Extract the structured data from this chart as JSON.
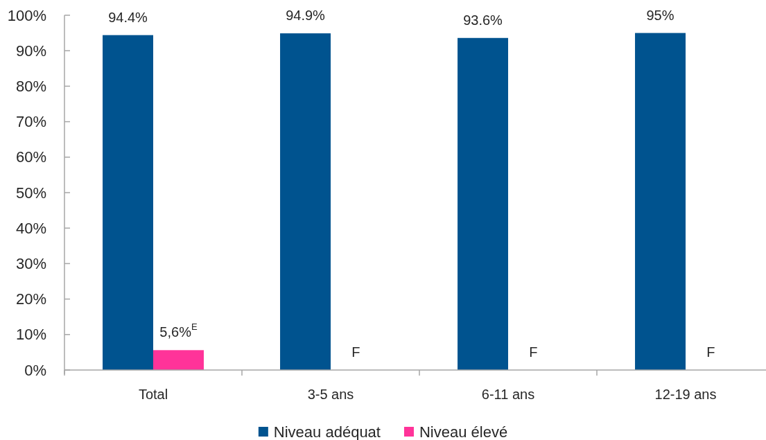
{
  "chart_data": {
    "type": "bar",
    "categories": [
      "Total",
      "3-5 ans",
      "6-11 ans",
      "12-19 ans"
    ],
    "series": [
      {
        "name": "Niveau adéquat",
        "color": "#00538f",
        "values": [
          94.4,
          94.9,
          93.6,
          95
        ],
        "value_labels": [
          "94.4%",
          "94.9%",
          "93.6%",
          "95%"
        ]
      },
      {
        "name": "Niveau élevé",
        "color": "#ff3399",
        "values": [
          5.6,
          null,
          null,
          null
        ],
        "value_labels": [
          "5,6%$^{E}$",
          "F",
          "F",
          "F"
        ]
      }
    ],
    "ylim": [
      0,
      100
    ],
    "yticks": [
      {
        "value": 0,
        "label": "0%"
      },
      {
        "value": 10,
        "label": "10%"
      },
      {
        "value": 20,
        "label": "20%"
      },
      {
        "value": 30,
        "label": "30%"
      },
      {
        "value": 40,
        "label": "40%"
      },
      {
        "value": 50,
        "label": "50%"
      },
      {
        "value": 60,
        "label": "60%"
      },
      {
        "value": 70,
        "label": "70%"
      },
      {
        "value": 80,
        "label": "80%"
      },
      {
        "value": 90,
        "label": "90%"
      },
      {
        "value": 100,
        "label": "100%"
      }
    ],
    "legend": "bottom"
  }
}
